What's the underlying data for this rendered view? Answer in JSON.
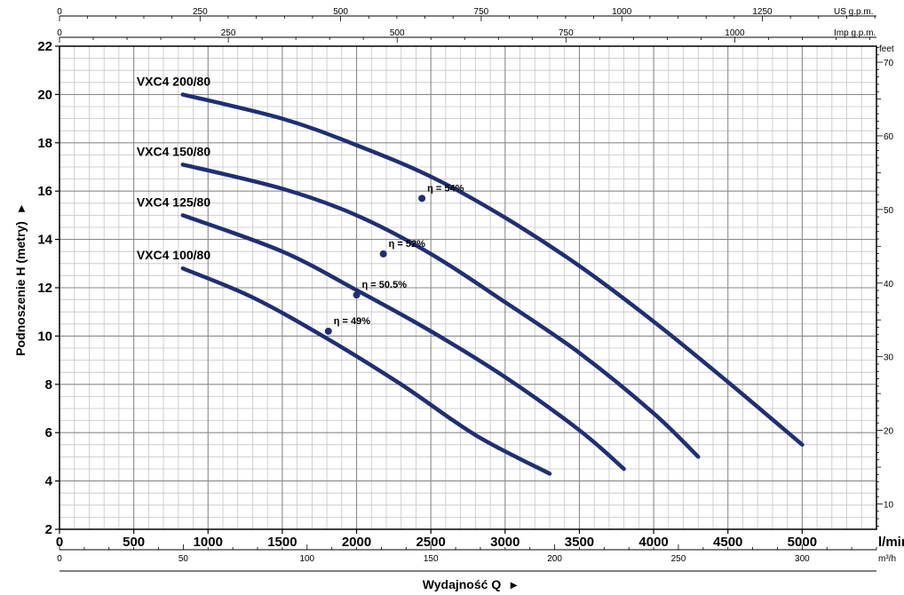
{
  "chart_data": {
    "type": "line",
    "xlabel": "Wydajność Q",
    "ylabel": "Podnoszenie H (metry)",
    "xlim": [
      0,
      5500
    ],
    "ylim": [
      2,
      22
    ],
    "x_ticks": [
      0,
      500,
      1000,
      1500,
      2000,
      2500,
      3000,
      3500,
      4000,
      4500,
      5000
    ],
    "x_unit": "l/min",
    "y_ticks": [
      2,
      4,
      6,
      8,
      10,
      12,
      14,
      16,
      18,
      20,
      22
    ],
    "secondary_axes": {
      "us_gpm": {
        "unit": "US g.p.m.",
        "ticks": [
          0,
          250,
          500,
          750,
          1000,
          1250
        ]
      },
      "imp_gpm": {
        "unit": "Imp g.p.m.",
        "ticks": [
          0,
          250,
          500,
          750,
          1000
        ]
      },
      "m3h": {
        "unit": "m³/h",
        "ticks": [
          0,
          50,
          100,
          150,
          200,
          250,
          300
        ]
      },
      "feet": {
        "unit": "feet",
        "ticks": [
          10,
          20,
          30,
          40,
          50,
          60,
          70
        ]
      }
    },
    "grid": true,
    "series": [
      {
        "name": "VXC4 200/80",
        "x": [
          830,
          1500,
          2000,
          2500,
          3000,
          3500,
          4000,
          4500,
          5000
        ],
        "y": [
          20.0,
          19.0,
          17.9,
          16.6,
          14.9,
          12.9,
          10.6,
          8.1,
          5.5
        ],
        "efficiency": {
          "label": "η = 54%",
          "x": 2440,
          "y": 15.7
        }
      },
      {
        "name": "VXC4 150/80",
        "x": [
          830,
          1500,
          2000,
          2500,
          3000,
          3500,
          4000,
          4300
        ],
        "y": [
          17.1,
          16.1,
          15.0,
          13.4,
          11.4,
          9.3,
          6.8,
          5.0
        ],
        "efficiency": {
          "label": "η = 52%",
          "x": 2180,
          "y": 13.4
        }
      },
      {
        "name": "VXC4 125/80",
        "x": [
          830,
          1500,
          2000,
          2500,
          3000,
          3500,
          3800
        ],
        "y": [
          15.0,
          13.5,
          11.9,
          10.2,
          8.3,
          6.1,
          4.5
        ],
        "efficiency": {
          "label": "η = 50.5%",
          "x": 2000,
          "y": 11.7
        }
      },
      {
        "name": "VXC4 100/80",
        "x": [
          830,
          1300,
          1800,
          2300,
          2800,
          3300
        ],
        "y": [
          12.8,
          11.6,
          9.9,
          8.0,
          5.9,
          4.3
        ],
        "efficiency": {
          "label": "η = 49%",
          "x": 1810,
          "y": 10.2
        }
      }
    ]
  }
}
